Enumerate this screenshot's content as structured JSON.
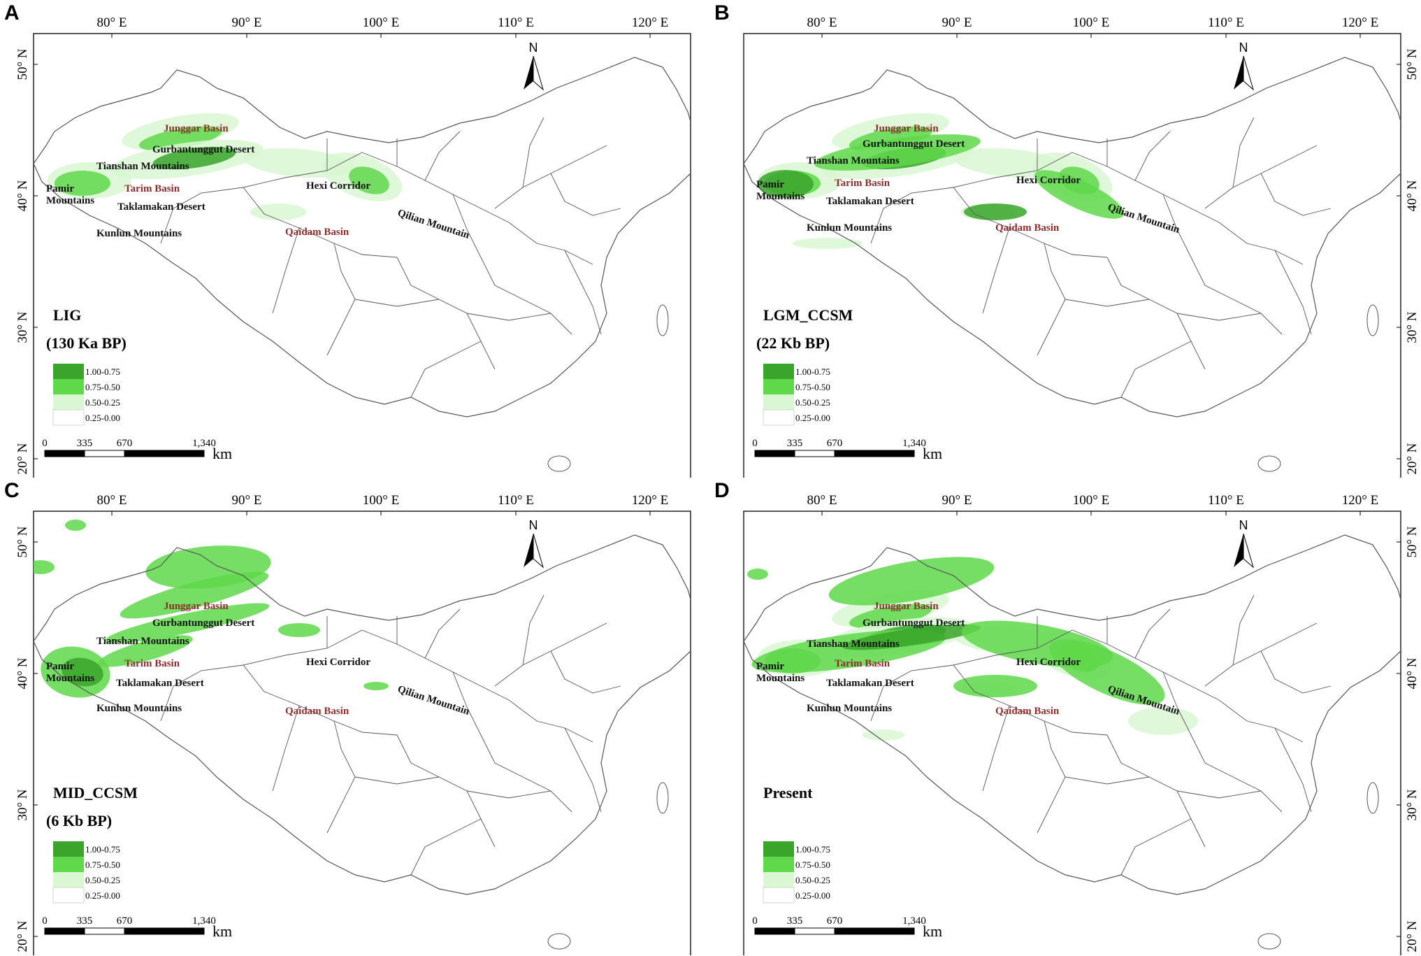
{
  "colors": {
    "class_1": "#3aa52a",
    "class_2": "#5fd84a",
    "class_3": "#d9f7d2",
    "class_4": "#ffffff",
    "basin_label": "#8b2d2d",
    "border": "#555555"
  },
  "legend_classes": [
    "1.00-0.75",
    "0.75-0.50",
    "0.50-0.25",
    "0.25-0.00"
  ],
  "scale_bar": {
    "ticks": [
      "0",
      "335",
      "670",
      "1,340"
    ],
    "unit": "km"
  },
  "north_label": "N",
  "lon_labels": [
    "80° E",
    "90° E",
    "100° E",
    "110° E",
    "120° E"
  ],
  "lat_labels": [
    "50° N",
    "40° N",
    "30° N",
    "20° N"
  ],
  "places": {
    "junggar": "Junggar Basin",
    "gurban": "Gurbantunggut Desert",
    "tianshan": "Tianshan Mountains",
    "tarim": "Tarim Basin",
    "pamir": "Pamir\nMountains",
    "taklamakan": "Taklamakan Desert",
    "kunlun": "Kunlun Mountains",
    "hexi": "Hexi Corridor",
    "qilian": "Qilian Mountain",
    "qaidam": "Qaidam Basin"
  },
  "panels": [
    {
      "id": "A",
      "period": "LIG",
      "age": "(130 Ka BP)"
    },
    {
      "id": "B",
      "period": "LGM_CCSM",
      "age": "(22 Kb BP)"
    },
    {
      "id": "C",
      "period": "MID_CCSM",
      "age": "(6 Kb BP)"
    },
    {
      "id": "D",
      "period": "Present",
      "age": ""
    }
  ]
}
